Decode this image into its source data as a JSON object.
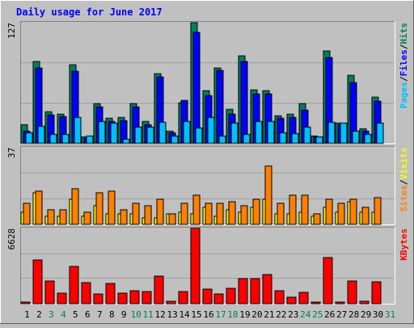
{
  "chart_data": {
    "type": "bar",
    "title": "Daily usage for June 2017",
    "categories": [
      "1",
      "2",
      "3",
      "4",
      "5",
      "6",
      "7",
      "8",
      "9",
      "10",
      "11",
      "12",
      "13",
      "14",
      "15",
      "16",
      "17",
      "18",
      "19",
      "20",
      "21",
      "22",
      "23",
      "24",
      "25",
      "26",
      "27",
      "28",
      "29",
      "30",
      "31"
    ],
    "weekend_days": [
      "3",
      "4",
      "10",
      "11",
      "17",
      "18",
      "24",
      "25",
      "31"
    ],
    "panels": [
      {
        "id": "pages_files_hits",
        "ytick_label": "127",
        "ylim": [
          0,
          127
        ],
        "series": [
          {
            "name": "Hits",
            "color": "#00805c",
            "values": [
              20,
              86,
              33,
              31,
              83,
              7,
              42,
              26,
              27,
              42,
              23,
              73,
              13,
              43,
              127,
              55,
              79,
              36,
              92,
              56,
              55,
              29,
              31,
              42,
              8,
              97,
              21,
              72,
              15,
              49,
              0
            ]
          },
          {
            "name": "Files",
            "color": "#0000ff",
            "values": [
              13,
              79,
              30,
              28,
              76,
              5,
              38,
              23,
              24,
              38,
              20,
              70,
              11,
              45,
              117,
              50,
              77,
              31,
              86,
              52,
              52,
              26,
              27,
              35,
              7,
              90,
              20,
              64,
              13,
              44,
              0
            ]
          },
          {
            "name": "Pages",
            "color": "#00c0ff",
            "values": [
              11,
              18,
              9,
              9,
              27,
              8,
              23,
              21,
              4,
              17,
              17,
              22,
              8,
              23,
              16,
              27,
              8,
              21,
              9,
              23,
              23,
              11,
              10,
              17,
              7,
              22,
              21,
              13,
              9,
              21,
              0
            ]
          }
        ],
        "legend": [
          "Pages",
          "/",
          "Files",
          "/",
          "Hits"
        ]
      },
      {
        "id": "sites_visits",
        "ytick_label": "37",
        "ylim": [
          0,
          37
        ],
        "series": [
          {
            "name": "Visits",
            "color": "#ffff00",
            "values": [
              6,
              15,
              4,
              4,
              12,
              4,
              9,
              5,
              5,
              5,
              3,
              3,
              5,
              6,
              5,
              8,
              4,
              7,
              6,
              8,
              12,
              5,
              5,
              6,
              4,
              8,
              6,
              11,
              6,
              6,
              0
            ]
          },
          {
            "name": "Sites",
            "color": "#ff8000",
            "values": [
              10,
              16,
              7,
              7,
              17,
              6,
              15,
              16,
              7,
              10,
              9,
              12,
              5,
              10,
              14,
              10,
              10,
              11,
              9,
              12,
              28,
              10,
              14,
              14,
              5,
              12,
              10,
              12,
              8,
              13,
              0
            ]
          }
        ],
        "legend": [
          "Sites",
          "/",
          "Visits"
        ]
      },
      {
        "id": "kbytes",
        "ytick_label": "6628",
        "ylim": [
          0,
          6628
        ],
        "series": [
          {
            "name": "KBytes",
            "color": "#ff0000",
            "values": [
              150,
              3820,
              2005,
              895,
              3281,
              1823,
              842,
              1791,
              928,
              1126,
              1066,
              2422,
              186,
              1101,
              6628,
              1316,
              852,
              1322,
              2225,
              2228,
              2578,
              1146,
              551,
              1017,
              131,
              4095,
              162,
              1997,
              214,
              1892,
              0
            ]
          }
        ],
        "legend": [
          "KBytes"
        ]
      }
    ],
    "colors": {
      "background": "#c0c0c0",
      "title": "#0000ff",
      "weekday_label": "#000000",
      "weekend_label": "#00805c",
      "legend_separator": "#000000"
    }
  }
}
